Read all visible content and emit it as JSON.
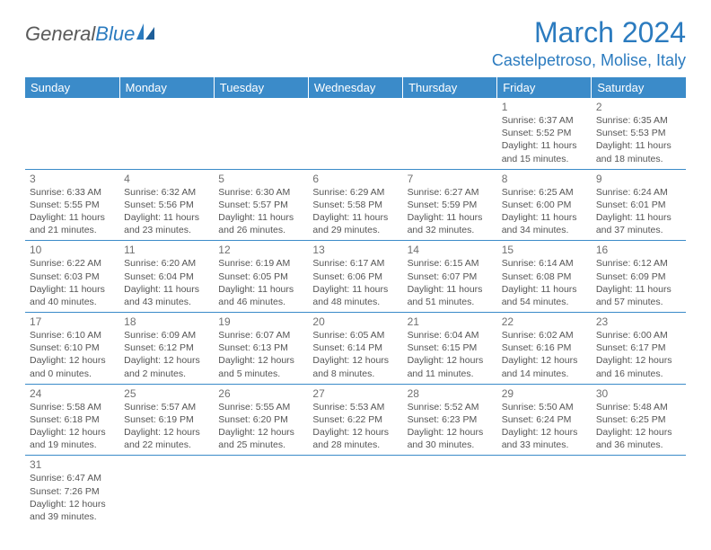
{
  "brand": {
    "general": "General",
    "blue": "Blue"
  },
  "title": "March 2024",
  "location": "Castelpetroso, Molise, Italy",
  "colors": {
    "header_bg": "#3b8bc9",
    "header_text": "#ffffff",
    "accent": "#2b7bbf",
    "text": "#555555",
    "daynum": "#707070",
    "logo_gray": "#5a5a5a",
    "border": "#3b8bc9"
  },
  "dayHeaders": [
    "Sunday",
    "Monday",
    "Tuesday",
    "Wednesday",
    "Thursday",
    "Friday",
    "Saturday"
  ],
  "grid": [
    [
      null,
      null,
      null,
      null,
      null,
      {
        "n": "1",
        "sr": "6:37 AM",
        "ss": "5:52 PM",
        "dl": "11 hours and 15 minutes."
      },
      {
        "n": "2",
        "sr": "6:35 AM",
        "ss": "5:53 PM",
        "dl": "11 hours and 18 minutes."
      }
    ],
    [
      {
        "n": "3",
        "sr": "6:33 AM",
        "ss": "5:55 PM",
        "dl": "11 hours and 21 minutes."
      },
      {
        "n": "4",
        "sr": "6:32 AM",
        "ss": "5:56 PM",
        "dl": "11 hours and 23 minutes."
      },
      {
        "n": "5",
        "sr": "6:30 AM",
        "ss": "5:57 PM",
        "dl": "11 hours and 26 minutes."
      },
      {
        "n": "6",
        "sr": "6:29 AM",
        "ss": "5:58 PM",
        "dl": "11 hours and 29 minutes."
      },
      {
        "n": "7",
        "sr": "6:27 AM",
        "ss": "5:59 PM",
        "dl": "11 hours and 32 minutes."
      },
      {
        "n": "8",
        "sr": "6:25 AM",
        "ss": "6:00 PM",
        "dl": "11 hours and 34 minutes."
      },
      {
        "n": "9",
        "sr": "6:24 AM",
        "ss": "6:01 PM",
        "dl": "11 hours and 37 minutes."
      }
    ],
    [
      {
        "n": "10",
        "sr": "6:22 AM",
        "ss": "6:03 PM",
        "dl": "11 hours and 40 minutes."
      },
      {
        "n": "11",
        "sr": "6:20 AM",
        "ss": "6:04 PM",
        "dl": "11 hours and 43 minutes."
      },
      {
        "n": "12",
        "sr": "6:19 AM",
        "ss": "6:05 PM",
        "dl": "11 hours and 46 minutes."
      },
      {
        "n": "13",
        "sr": "6:17 AM",
        "ss": "6:06 PM",
        "dl": "11 hours and 48 minutes."
      },
      {
        "n": "14",
        "sr": "6:15 AM",
        "ss": "6:07 PM",
        "dl": "11 hours and 51 minutes."
      },
      {
        "n": "15",
        "sr": "6:14 AM",
        "ss": "6:08 PM",
        "dl": "11 hours and 54 minutes."
      },
      {
        "n": "16",
        "sr": "6:12 AM",
        "ss": "6:09 PM",
        "dl": "11 hours and 57 minutes."
      }
    ],
    [
      {
        "n": "17",
        "sr": "6:10 AM",
        "ss": "6:10 PM",
        "dl": "12 hours and 0 minutes."
      },
      {
        "n": "18",
        "sr": "6:09 AM",
        "ss": "6:12 PM",
        "dl": "12 hours and 2 minutes."
      },
      {
        "n": "19",
        "sr": "6:07 AM",
        "ss": "6:13 PM",
        "dl": "12 hours and 5 minutes."
      },
      {
        "n": "20",
        "sr": "6:05 AM",
        "ss": "6:14 PM",
        "dl": "12 hours and 8 minutes."
      },
      {
        "n": "21",
        "sr": "6:04 AM",
        "ss": "6:15 PM",
        "dl": "12 hours and 11 minutes."
      },
      {
        "n": "22",
        "sr": "6:02 AM",
        "ss": "6:16 PM",
        "dl": "12 hours and 14 minutes."
      },
      {
        "n": "23",
        "sr": "6:00 AM",
        "ss": "6:17 PM",
        "dl": "12 hours and 16 minutes."
      }
    ],
    [
      {
        "n": "24",
        "sr": "5:58 AM",
        "ss": "6:18 PM",
        "dl": "12 hours and 19 minutes."
      },
      {
        "n": "25",
        "sr": "5:57 AM",
        "ss": "6:19 PM",
        "dl": "12 hours and 22 minutes."
      },
      {
        "n": "26",
        "sr": "5:55 AM",
        "ss": "6:20 PM",
        "dl": "12 hours and 25 minutes."
      },
      {
        "n": "27",
        "sr": "5:53 AM",
        "ss": "6:22 PM",
        "dl": "12 hours and 28 minutes."
      },
      {
        "n": "28",
        "sr": "5:52 AM",
        "ss": "6:23 PM",
        "dl": "12 hours and 30 minutes."
      },
      {
        "n": "29",
        "sr": "5:50 AM",
        "ss": "6:24 PM",
        "dl": "12 hours and 33 minutes."
      },
      {
        "n": "30",
        "sr": "5:48 AM",
        "ss": "6:25 PM",
        "dl": "12 hours and 36 minutes."
      }
    ],
    [
      {
        "n": "31",
        "sr": "6:47 AM",
        "ss": "7:26 PM",
        "dl": "12 hours and 39 minutes."
      },
      null,
      null,
      null,
      null,
      null,
      null
    ]
  ],
  "labels": {
    "sunrise": "Sunrise:",
    "sunset": "Sunset:",
    "daylight": "Daylight:"
  }
}
